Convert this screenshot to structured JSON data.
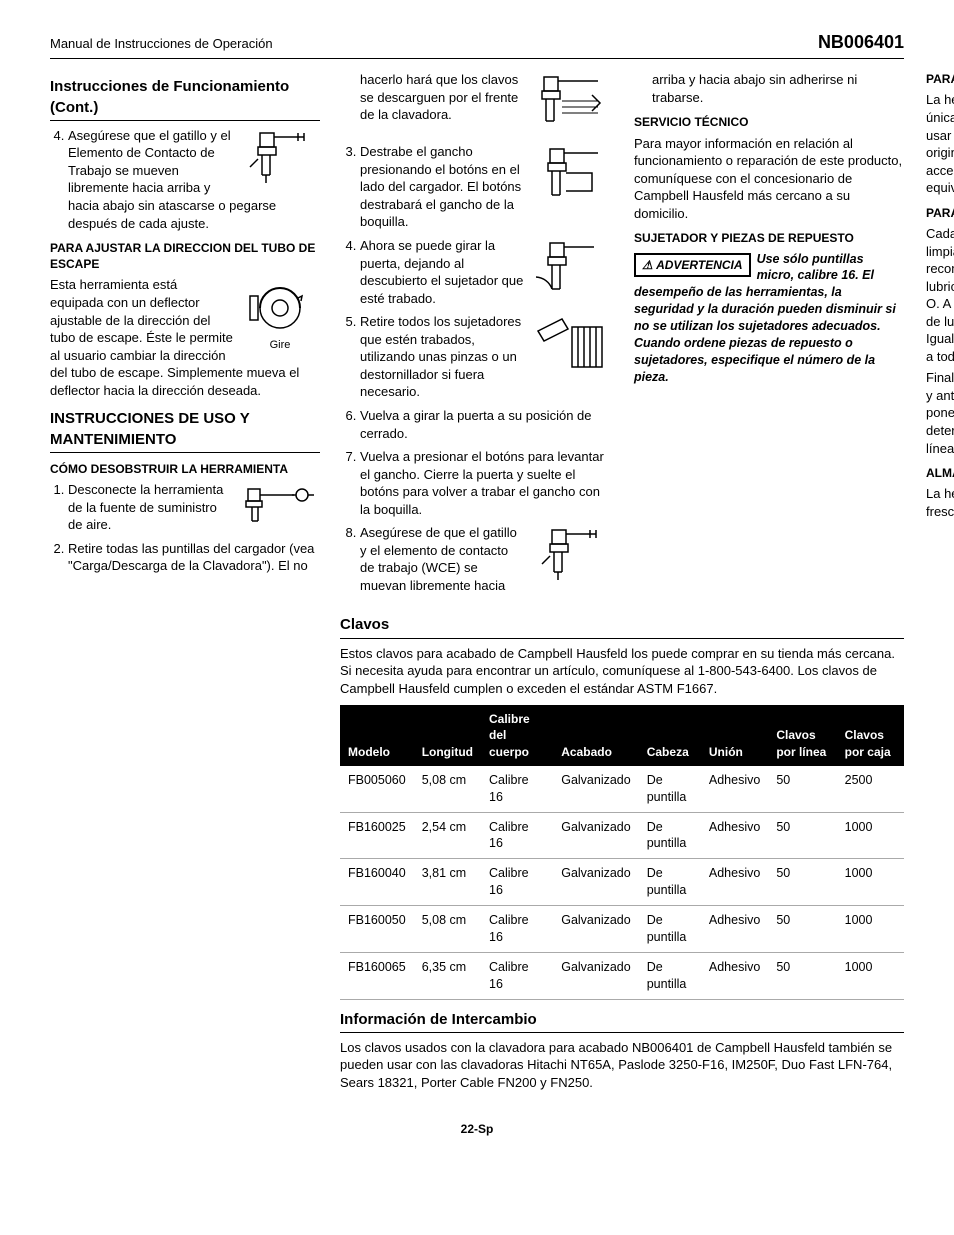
{
  "header": {
    "left": "Manual de Instrucciones de Operación",
    "right": "NB006401"
  },
  "col1": {
    "h1": "Instrucciones de Funcionamiento (Cont.)",
    "item4": "Asegúrese que el gatillo y el Elemento de Contacto de Trabajo se mueven libremente hacia arriba y hacia abajo sin atascarse o pegarse después de cada ajuste.",
    "sub1": "PARA AJUSTAR LA DIRECCION DEL TUBO DE ESCAPE",
    "p1": "Esta herramienta está equipada con un deflector ajustable de la dirección del tubo de escape. Éste le permite al usuario cambiar la dirección del tubo de escape. Simplemente mueva el deflector hacia la dirección deseada.",
    "gire": "Gire",
    "h2": "INSTRUCCIONES DE USO Y MANTENIMIENTO",
    "sub2": "CÓMO DESOBSTRUIR LA HERRAMIENTA",
    "li1": "Desconecte la herramienta de la fuente de suministro de aire.",
    "li2": "Retire todas las puntillas del cargador (vea \"Carga/Descarga de la Clavadora\"). El no hacerlo hará que los clavos se descarguen por el frente de la clavadora.",
    "li3": "Destrabe el gancho presionando el botóns en el lado del cargador. El botóns destrabará el gancho de la boquilla.",
    "li4": "Ahora se puede girar la puerta, dejando al descubierto el sujetador que esté trabado.",
    "li5": "Retire todos los sujetadores que estén trabados, utilizando unas pinzas o un destornillador si fuera necesario.",
    "li6": "Vuelva a girar la puerta a su posición de cerrado."
  },
  "col2": {
    "li7": "Vuelva a presionar el botóns para levantar el gancho. Cierre la puerta y suelte el botóns para volver a trabar el gancho con la boquilla.",
    "li8": "Asegúrese de que el gatillo y el elemento de contacto de trabajo (WCE) se muevan libremente hacia arriba y hacia abajo sin adherirse ni trabarse.",
    "sub1": "SERVICIO TÉCNICO",
    "p1": "Para mayor información en relación al funcionamiento o reparación de este producto, comuníquese con el concesionario de Campbell Hausfeld más cercano a su domicilio.",
    "sub2": "SUJETADOR Y PIEZAS DE REPUESTO",
    "warn_label": "ADVERTENCIA",
    "warn": "Use sólo puntillas micro, calibre 16. El desempeño de las herramientas, la seguridad y la duración pueden disminuir si no se utilizan los sujetadores adecuados. Cuando ordene piezas de repuesto o sujetadores, especifique el número de la pieza."
  },
  "col3": {
    "sub1": "PARA REPARAR LA HERRAMIENTA",
    "p1": "La herramienta deberá ser reparada únicamente por personal calificado, y deberán usar piezas de repuesto y accesorios originales Campbell Hausfeld, o piezas y accesorios que funcionen de manera equivalente.",
    "sub2": "PARA COLOCARLE LOS SELLOS",
    "p2": "Cada vez que repare una herramienta deberá limpiarle y lubricarle las partes internas. Le recomendamos que use Parker O-lube o un lubricante equivalente en todos los anillos en O. A cada anillo en O se le debe dar un baño de lubricante para anillos antes de instalarlos. Igualmente, deberá ponerle un poco de aceite a todas las piezas que se mueven y muñones.",
    "p2b": "Finalmente, después de haberla ensamblado y antes de probar la herramienta deberá ponerle unas cuantas gotas de aceite sin detergente 30W u otro aceite similar, en las líneas de aire.",
    "sub3": "ALMACENAMIENTO",
    "p3": "La herramienta debe guardarse en un lugar fresco y seco."
  },
  "clavos": {
    "title": "Clavos",
    "intro": "Estos clavos para acabado de Campbell Hausfeld los puede comprar en su tienda más cercana. Si necesita ayuda para encontrar un artículo, comuníquese al 1-800-543-6400. Los clavos de Campbell Hausfeld cumplen o exceden el estándar ASTM F1667.",
    "cols": [
      "Modelo",
      "Longitud",
      "Calibre del cuerpo",
      "Acabado",
      "Cabeza",
      "Unión",
      "Clavos por línea",
      "Clavos por caja"
    ],
    "rows": [
      [
        "FB005060",
        "5,08 cm",
        "Calibre 16",
        "Galvanizado",
        "De puntilla",
        "Adhesivo",
        "50",
        "2500"
      ],
      [
        "FB160025",
        "2,54 cm",
        "Calibre 16",
        "Galvanizado",
        "De puntilla",
        "Adhesivo",
        "50",
        "1000"
      ],
      [
        "FB160040",
        "3,81 cm",
        "Calibre 16",
        "Galvanizado",
        "De puntilla",
        "Adhesivo",
        "50",
        "1000"
      ],
      [
        "FB160050",
        "5,08 cm",
        "Calibre 16",
        "Galvanizado",
        "De puntilla",
        "Adhesivo",
        "50",
        "1000"
      ],
      [
        "FB160065",
        "6,35 cm",
        "Calibre 16",
        "Galvanizado",
        "De puntilla",
        "Adhesivo",
        "50",
        "1000"
      ]
    ]
  },
  "inter": {
    "title": "Información de Intercambio",
    "p": "Los clavos usados con la clavadora para acabado NB006401 de Campbell Hausfeld también se pueden usar con las clavadoras Hitachi NT65A, Paslode 3250-F16, IM250F, Duo Fast LFN-764, Sears 18321, Porter Cable FN200 y FN250."
  },
  "footer": "22-Sp"
}
